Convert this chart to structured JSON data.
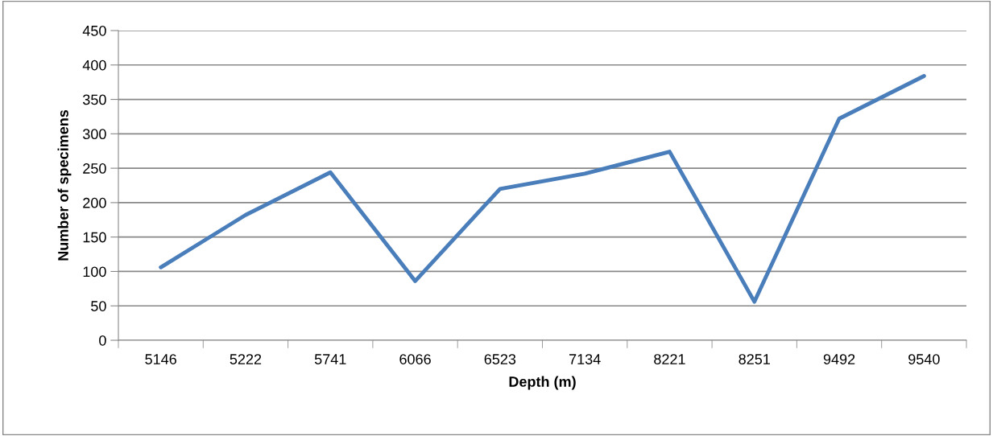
{
  "chart_data": {
    "type": "line",
    "xlabel": "Depth (m)",
    "ylabel": "Number of specimens",
    "categories": [
      "5146",
      "5222",
      "5741",
      "6066",
      "6523",
      "7134",
      "8221",
      "8251",
      "9492",
      "9540"
    ],
    "series": [
      {
        "color": "#4a7ebb",
        "values": [
          106,
          182,
          244,
          86,
          220,
          242,
          274,
          56,
          322,
          384
        ]
      }
    ],
    "ylim": [
      0,
      450
    ],
    "yticks": [
      0,
      50,
      100,
      150,
      200,
      250,
      300,
      350,
      400,
      450
    ],
    "grid": "y",
    "legend": false,
    "marker": "none",
    "line_style": "solid"
  }
}
